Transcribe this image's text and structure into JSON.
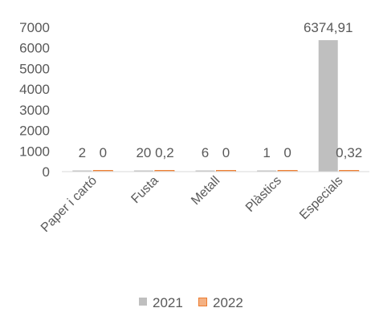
{
  "chart_data": {
    "type": "bar",
    "categories": [
      "Paper i cartó",
      "Fusta",
      "Metall",
      "Plàstics",
      "Especials"
    ],
    "series": [
      {
        "name": "2021",
        "values": [
          2,
          20,
          6,
          1,
          6374.91
        ],
        "labels": [
          "2",
          "20",
          "6",
          "1",
          "6374,91"
        ],
        "color": "#BFBFBF"
      },
      {
        "name": "2022",
        "values": [
          0,
          0.2,
          0,
          0,
          0.32
        ],
        "labels": [
          "0",
          "0,2",
          "0",
          "0",
          "0,32"
        ],
        "color": "#F4B183"
      }
    ],
    "ylim": [
      0,
      7000
    ],
    "yticks": [
      0,
      1000,
      2000,
      3000,
      4000,
      5000,
      6000,
      7000
    ],
    "grid": false,
    "legend": "bottom",
    "series_2022_border": "#ED7D31"
  }
}
